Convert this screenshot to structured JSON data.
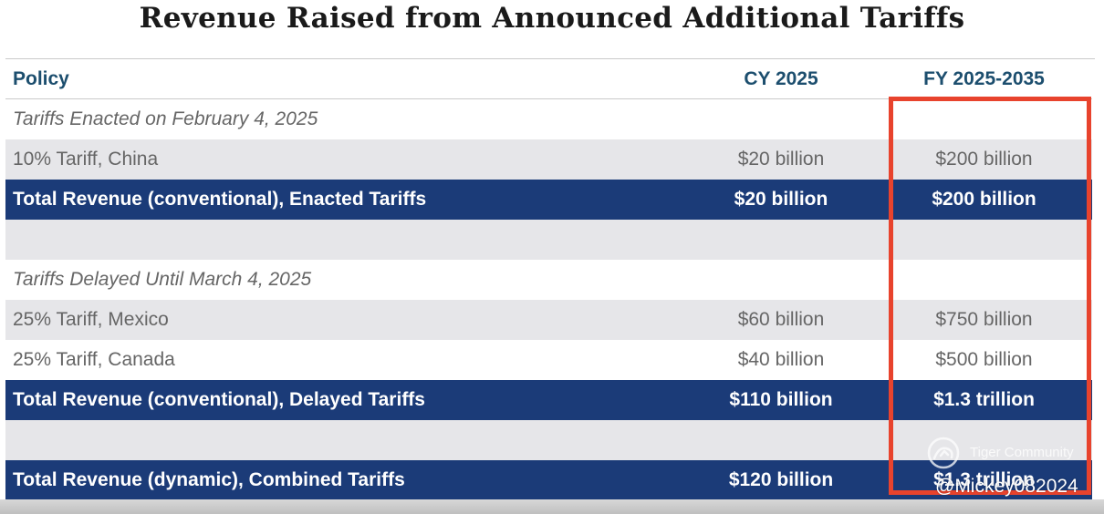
{
  "chart_data": {
    "type": "table",
    "title": "Revenue Raised from Announced Additional Tariffs",
    "columns": [
      "Policy",
      "CY 2025",
      "FY 2025-2035"
    ],
    "rows": [
      {
        "kind": "section",
        "policy": "Tariffs Enacted on February 4, 2025",
        "cy2025": "",
        "fy2025_2035": ""
      },
      {
        "kind": "item",
        "policy": "10% Tariff, China",
        "cy2025": "$20 billion",
        "fy2025_2035": "$200 billion"
      },
      {
        "kind": "total",
        "policy": "Total Revenue (conventional), Enacted Tariffs",
        "cy2025": "$20 billion",
        "fy2025_2035": "$200 billion"
      },
      {
        "kind": "spacer",
        "policy": "",
        "cy2025": "",
        "fy2025_2035": ""
      },
      {
        "kind": "section",
        "policy": "Tariffs Delayed Until March 4, 2025",
        "cy2025": "",
        "fy2025_2035": ""
      },
      {
        "kind": "item",
        "policy": "25% Tariff, Mexico",
        "cy2025": "$60 billion",
        "fy2025_2035": "$750 billion"
      },
      {
        "kind": "item",
        "policy": "25% Tariff, Canada",
        "cy2025": "$40 billion",
        "fy2025_2035": "$500 billion"
      },
      {
        "kind": "total",
        "policy": "Total Revenue (conventional), Delayed Tariffs",
        "cy2025": "$110 billion",
        "fy2025_2035": "$1.3 trillion"
      },
      {
        "kind": "spacer",
        "policy": "",
        "cy2025": "",
        "fy2025_2035": ""
      },
      {
        "kind": "total",
        "policy": "Total Revenue (dynamic), Combined Tariffs",
        "cy2025": "$120 billion",
        "fy2025_2035": "$1.3 trillion"
      }
    ],
    "highlighted_column": "FY 2025-2035"
  },
  "watermark": {
    "brand": "Tiger Community",
    "user": "@Mickey082024"
  },
  "colors": {
    "header_text": "#1c4e6e",
    "total_row_bg": "#1b3b78",
    "shaded_row_bg": "#e6e6e9",
    "highlight_border": "#e8432d"
  }
}
